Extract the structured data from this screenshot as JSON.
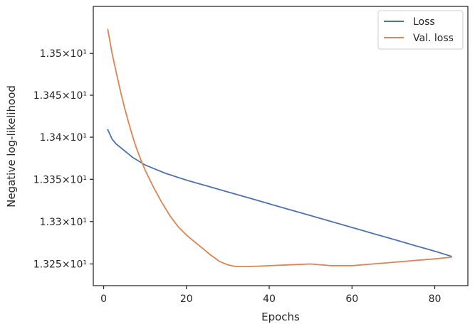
{
  "chart_data": {
    "type": "line",
    "xlabel": "Epochs",
    "ylabel": "Negative log-likelihood",
    "xlim": [
      -2.5,
      88
    ],
    "ylim": [
      13.2245,
      13.5565
    ],
    "yscale": "log",
    "xticks": [
      0,
      20,
      40,
      60,
      80
    ],
    "xtick_labels": [
      "0",
      "20",
      "40",
      "60",
      "80"
    ],
    "yticks": [
      13.25,
      13.3,
      13.35,
      13.4,
      13.45,
      13.5
    ],
    "ytick_labels": [
      "1.325×10¹",
      "1.33×10¹",
      "1.335×10¹",
      "1.34×10¹",
      "1.345×10¹",
      "1.35×10¹"
    ],
    "grid": false,
    "legend_position": "top-right",
    "series": [
      {
        "name": "Loss",
        "color": "#4c72b0",
        "x": [
          1,
          2,
          3,
          4,
          5,
          6,
          7,
          8,
          10,
          12,
          15,
          20,
          25,
          30,
          35,
          40,
          45,
          50,
          55,
          60,
          65,
          70,
          75,
          80,
          84
        ],
        "y": [
          13.409,
          13.398,
          13.392,
          13.388,
          13.384,
          13.38,
          13.376,
          13.373,
          13.367,
          13.363,
          13.357,
          13.349,
          13.342,
          13.335,
          13.328,
          13.321,
          13.314,
          13.307,
          13.3,
          13.293,
          13.286,
          13.279,
          13.272,
          13.265,
          13.259
        ]
      },
      {
        "name": "Val. loss",
        "color": "#dd8452",
        "x": [
          1,
          2,
          3,
          4,
          5,
          6,
          7,
          8,
          9,
          10,
          12,
          14,
          16,
          18,
          20,
          22,
          24,
          26,
          28,
          30,
          32,
          35,
          40,
          45,
          50,
          55,
          60,
          65,
          70,
          75,
          80,
          84
        ],
        "y": [
          13.529,
          13.501,
          13.478,
          13.456,
          13.436,
          13.418,
          13.401,
          13.386,
          13.373,
          13.361,
          13.341,
          13.323,
          13.307,
          13.294,
          13.284,
          13.276,
          13.268,
          13.26,
          13.253,
          13.249,
          13.247,
          13.247,
          13.248,
          13.249,
          13.25,
          13.248,
          13.248,
          13.25,
          13.252,
          13.254,
          13.256,
          13.258
        ]
      }
    ]
  }
}
